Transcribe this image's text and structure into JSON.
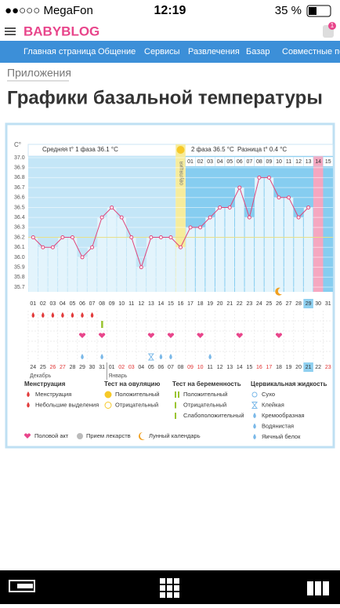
{
  "status": {
    "carrier": "●●○○○ MegaFon",
    "time": "12:19",
    "battery": "35 %"
  },
  "header": {
    "logo": "BABYBLOG",
    "badge": "1"
  },
  "nav": [
    "Главная страница",
    "Общение",
    "Сервисы",
    "Развлечения",
    "Базар",
    "Совместные поку"
  ],
  "breadcrumb": "Приложения",
  "title": "Графики базальной температуры",
  "chart_data": {
    "type": "line",
    "y_label": "C°",
    "info": {
      "phase1": "Средняя t° 1 фаза 36.1 °C",
      "phase2": "2 фаза 36.5 °C",
      "diff": "Разница t° 0.4 °C"
    },
    "ovulation_label": "овуляция",
    "ovulation_day": 16,
    "today_day": 29,
    "luteal_end_day": 30,
    "color": "#e0457b",
    "categories": [
      "01",
      "02",
      "03",
      "04",
      "05",
      "06",
      "07",
      "08",
      "09",
      "10",
      "11",
      "12",
      "13",
      "14",
      "15",
      "16",
      "17",
      "18",
      "19",
      "20",
      "21",
      "22",
      "23",
      "24",
      "25",
      "26",
      "27",
      "28",
      "29",
      "30",
      "31"
    ],
    "values": [
      36.2,
      36.1,
      36.1,
      36.2,
      36.2,
      36.0,
      36.1,
      36.4,
      36.5,
      36.4,
      36.2,
      35.9,
      36.2,
      36.2,
      36.2,
      36.1,
      36.3,
      36.3,
      36.4,
      36.5,
      36.5,
      36.7,
      36.4,
      36.8,
      36.8,
      36.6,
      36.6,
      36.4,
      36.5,
      null,
      null
    ],
    "coverline": 36.2,
    "phase2_days": [
      "01",
      "02",
      "03",
      "04",
      "05",
      "06",
      "07",
      "08",
      "09",
      "10",
      "11",
      "12",
      "13",
      "14",
      "15"
    ],
    "dates": [
      "24",
      "25",
      "26",
      "27",
      "28",
      "29",
      "30",
      "31",
      "01",
      "02",
      "03",
      "04",
      "05",
      "06",
      "07",
      "08",
      "09",
      "10",
      "11",
      "12",
      "13",
      "14",
      "15",
      "16",
      "17",
      "18",
      "19",
      "20",
      "21",
      "22",
      "23"
    ],
    "red_dates": [
      2,
      3,
      9,
      10,
      16,
      17,
      23,
      24,
      30
    ],
    "months": [
      "Декабрь",
      "Январь"
    ],
    "ylim": [
      35.7,
      37.0
    ],
    "yticks": [
      {
        "value": 37,
        "label": "37.0"
      },
      36.9,
      36.8,
      36.7,
      36.6,
      36.5,
      36.4,
      36.3,
      36.2,
      36.1,
      {
        "value": 36,
        "label": "36.0"
      },
      35.9,
      35.8,
      35.7
    ],
    "markers": {
      "menstruation": [
        1,
        2,
        3,
        4,
        5,
        6,
        7
      ],
      "pregnancy_weak": [
        8
      ],
      "intercourse": [
        6,
        8,
        13,
        15,
        18,
        22,
        26
      ],
      "cervical_sticky": [
        13
      ],
      "cervical_watery": [
        6,
        8,
        14,
        15,
        19
      ],
      "moon": [
        26
      ]
    }
  },
  "legend": {
    "groups": [
      {
        "title": "Менструация",
        "items": [
          "Менструация",
          "Небольшие выделения"
        ]
      },
      {
        "title": "Тест на овуляцию",
        "items": [
          "Положительный",
          "Отрицательный"
        ]
      },
      {
        "title": "Тест на беременность",
        "items": [
          "Положительный",
          "Отрицательный",
          "Слабоположительный"
        ]
      },
      {
        "title": "Цервикальная жидкость",
        "items": [
          "Сухо",
          "Клейкая",
          "Кремообразная",
          "Водянистая",
          "Яичный белок"
        ]
      }
    ],
    "bottom": [
      "Половой акт",
      "Прием лекарств",
      "Лунный календарь"
    ]
  }
}
